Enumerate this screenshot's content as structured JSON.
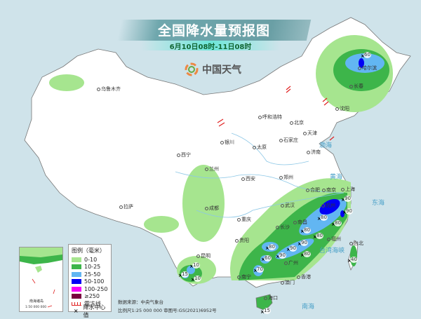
{
  "header": {
    "title": "全国降水量预报图",
    "subtitle": "6月10日08时-11日08时"
  },
  "logo": {
    "text": "中国天气"
  },
  "legend": {
    "title": "图例（毫米）",
    "items": [
      {
        "label": "0-10",
        "color": "#a6e58f"
      },
      {
        "label": "10-25",
        "color": "#3db54a"
      },
      {
        "label": "25-50",
        "color": "#62b6f2"
      },
      {
        "label": "50-100",
        "color": "#0000f5"
      },
      {
        "label": "100-250",
        "color": "#f500f5"
      },
      {
        "label": "≥250",
        "color": "#7a0040"
      }
    ],
    "frost_line": "霜冻线",
    "center_value": "降水中心值"
  },
  "footer": {
    "source": "数据来源：中央气象台",
    "scale": "比例尺1:25 000 000   审图号:GS(2021)6952号"
  },
  "inset": {
    "label": "南海诸岛",
    "scale": "1:50 000 000",
    "places": [
      "香港",
      "澳门",
      "海口"
    ]
  },
  "cities": [
    "乌鲁木齐",
    "哈尔滨",
    "长春",
    "沈阳",
    "呼和浩特",
    "北京",
    "天津",
    "石家庄",
    "太原",
    "银川",
    "济南",
    "西宁",
    "兰州",
    "郑州",
    "西安",
    "拉萨",
    "成都",
    "重庆",
    "武汉",
    "合肥",
    "南京",
    "上海",
    "杭州",
    "长沙",
    "贵阳",
    "南昌",
    "福州",
    "昆明",
    "南宁",
    "广州",
    "香港",
    "澳门",
    "台北",
    "海口"
  ],
  "seas": [
    "渤海",
    "黄海",
    "东海",
    "南海",
    "台湾海峡"
  ],
  "rain_centers": [
    "60",
    "90",
    "90",
    "80",
    "80",
    "80",
    "80",
    "90",
    "90",
    "90",
    "80",
    "80",
    "60",
    "70",
    "10",
    "15",
    "10",
    "40",
    "15"
  ]
}
